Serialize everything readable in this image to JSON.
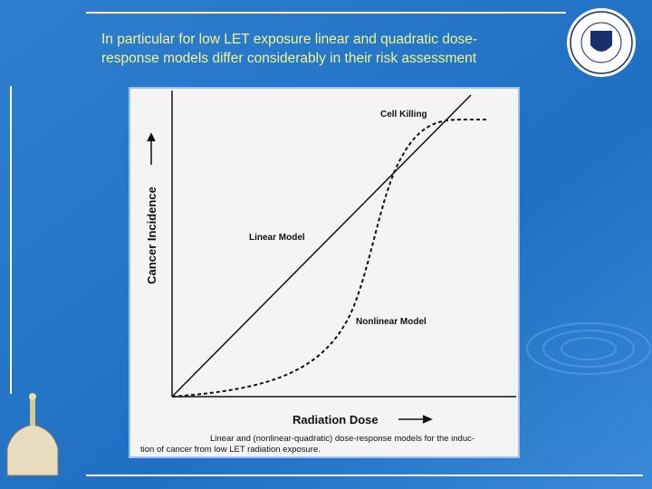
{
  "slide": {
    "title_lines": [
      "In particular for low LET exposure linear and quadratic dose-",
      "response models differ considerably in their risk assessment"
    ]
  },
  "figure": {
    "y_axis_label": "Cancer Incidence",
    "x_axis_label": "Radiation Dose",
    "curve_labels": [
      "Cell Killing",
      "Linear Model",
      "Nonlinear Model"
    ],
    "caption_lines": [
      "Linear and (nonlinear-quadratic) dose-response models for the induc-",
      "tion of cancer from low LET radiation exposure."
    ]
  }
}
